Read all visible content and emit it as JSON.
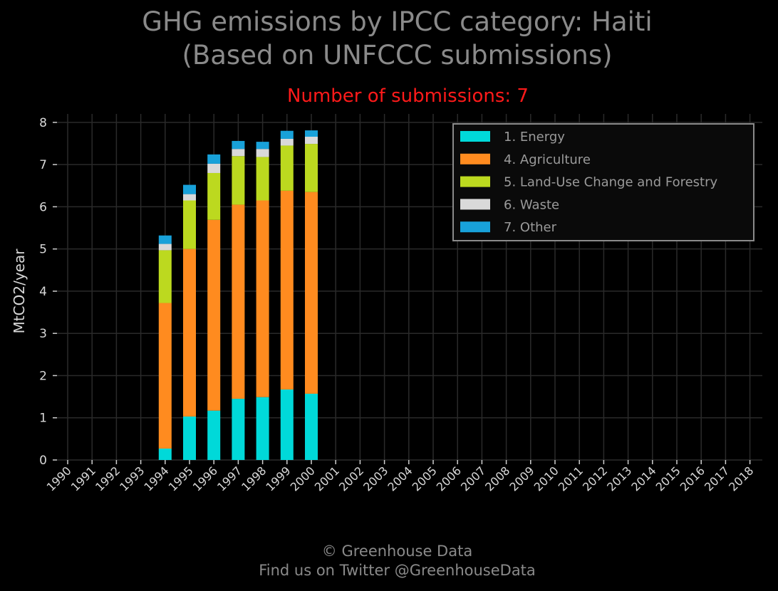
{
  "header": {
    "title_line1": "GHG emissions by IPCC category: Haiti",
    "title_line2": "(Based on UNFCCC submissions)",
    "subtitle": "Number of submissions: 7"
  },
  "footer": {
    "line1": "© Greenhouse Data",
    "line2": "Find us on Twitter @GreenhouseData"
  },
  "chart_data": {
    "type": "bar",
    "stacked": true,
    "ylabel": "MtCO2/year",
    "xlabel": "",
    "ylim": [
      0,
      8.2
    ],
    "yticks": [
      0,
      1,
      2,
      3,
      4,
      5,
      6,
      7,
      8
    ],
    "grid": true,
    "legend_position": "top-right",
    "categories": [
      "1990",
      "1991",
      "1992",
      "1993",
      "1994",
      "1995",
      "1996",
      "1997",
      "1998",
      "1999",
      "2000",
      "2001",
      "2002",
      "2003",
      "2004",
      "2005",
      "2006",
      "2007",
      "2008",
      "2009",
      "2010",
      "2011",
      "2012",
      "2013",
      "2014",
      "2015",
      "2016",
      "2017",
      "2018"
    ],
    "series": [
      {
        "name": "1. Energy",
        "color": "#00d9d9",
        "values": [
          null,
          null,
          null,
          null,
          0.27,
          1.03,
          1.17,
          1.45,
          1.49,
          1.67,
          1.57,
          null,
          null,
          null,
          null,
          null,
          null,
          null,
          null,
          null,
          null,
          null,
          null,
          null,
          null,
          null,
          null,
          null,
          null
        ]
      },
      {
        "name": "4. Agriculture",
        "color": "#ff8b1f",
        "values": [
          null,
          null,
          null,
          null,
          3.45,
          3.97,
          4.52,
          4.6,
          4.66,
          4.71,
          4.78,
          null,
          null,
          null,
          null,
          null,
          null,
          null,
          null,
          null,
          null,
          null,
          null,
          null,
          null,
          null,
          null,
          null,
          null
        ]
      },
      {
        "name": "5. Land-Use Change and Forestry",
        "color": "#bcd91f",
        "values": [
          null,
          null,
          null,
          null,
          1.25,
          1.15,
          1.11,
          1.15,
          1.03,
          1.07,
          1.14,
          null,
          null,
          null,
          null,
          null,
          null,
          null,
          null,
          null,
          null,
          null,
          null,
          null,
          null,
          null,
          null,
          null,
          null
        ]
      },
      {
        "name": "6. Waste",
        "color": "#d9d9d9",
        "values": [
          null,
          null,
          null,
          null,
          0.15,
          0.15,
          0.22,
          0.17,
          0.19,
          0.16,
          0.17,
          null,
          null,
          null,
          null,
          null,
          null,
          null,
          null,
          null,
          null,
          null,
          null,
          null,
          null,
          null,
          null,
          null,
          null
        ]
      },
      {
        "name": "7. Other",
        "color": "#18a1d9",
        "values": [
          null,
          null,
          null,
          null,
          0.2,
          0.22,
          0.22,
          0.19,
          0.17,
          0.19,
          0.15,
          null,
          null,
          null,
          null,
          null,
          null,
          null,
          null,
          null,
          null,
          null,
          null,
          null,
          null,
          null,
          null,
          null,
          null
        ]
      }
    ]
  }
}
